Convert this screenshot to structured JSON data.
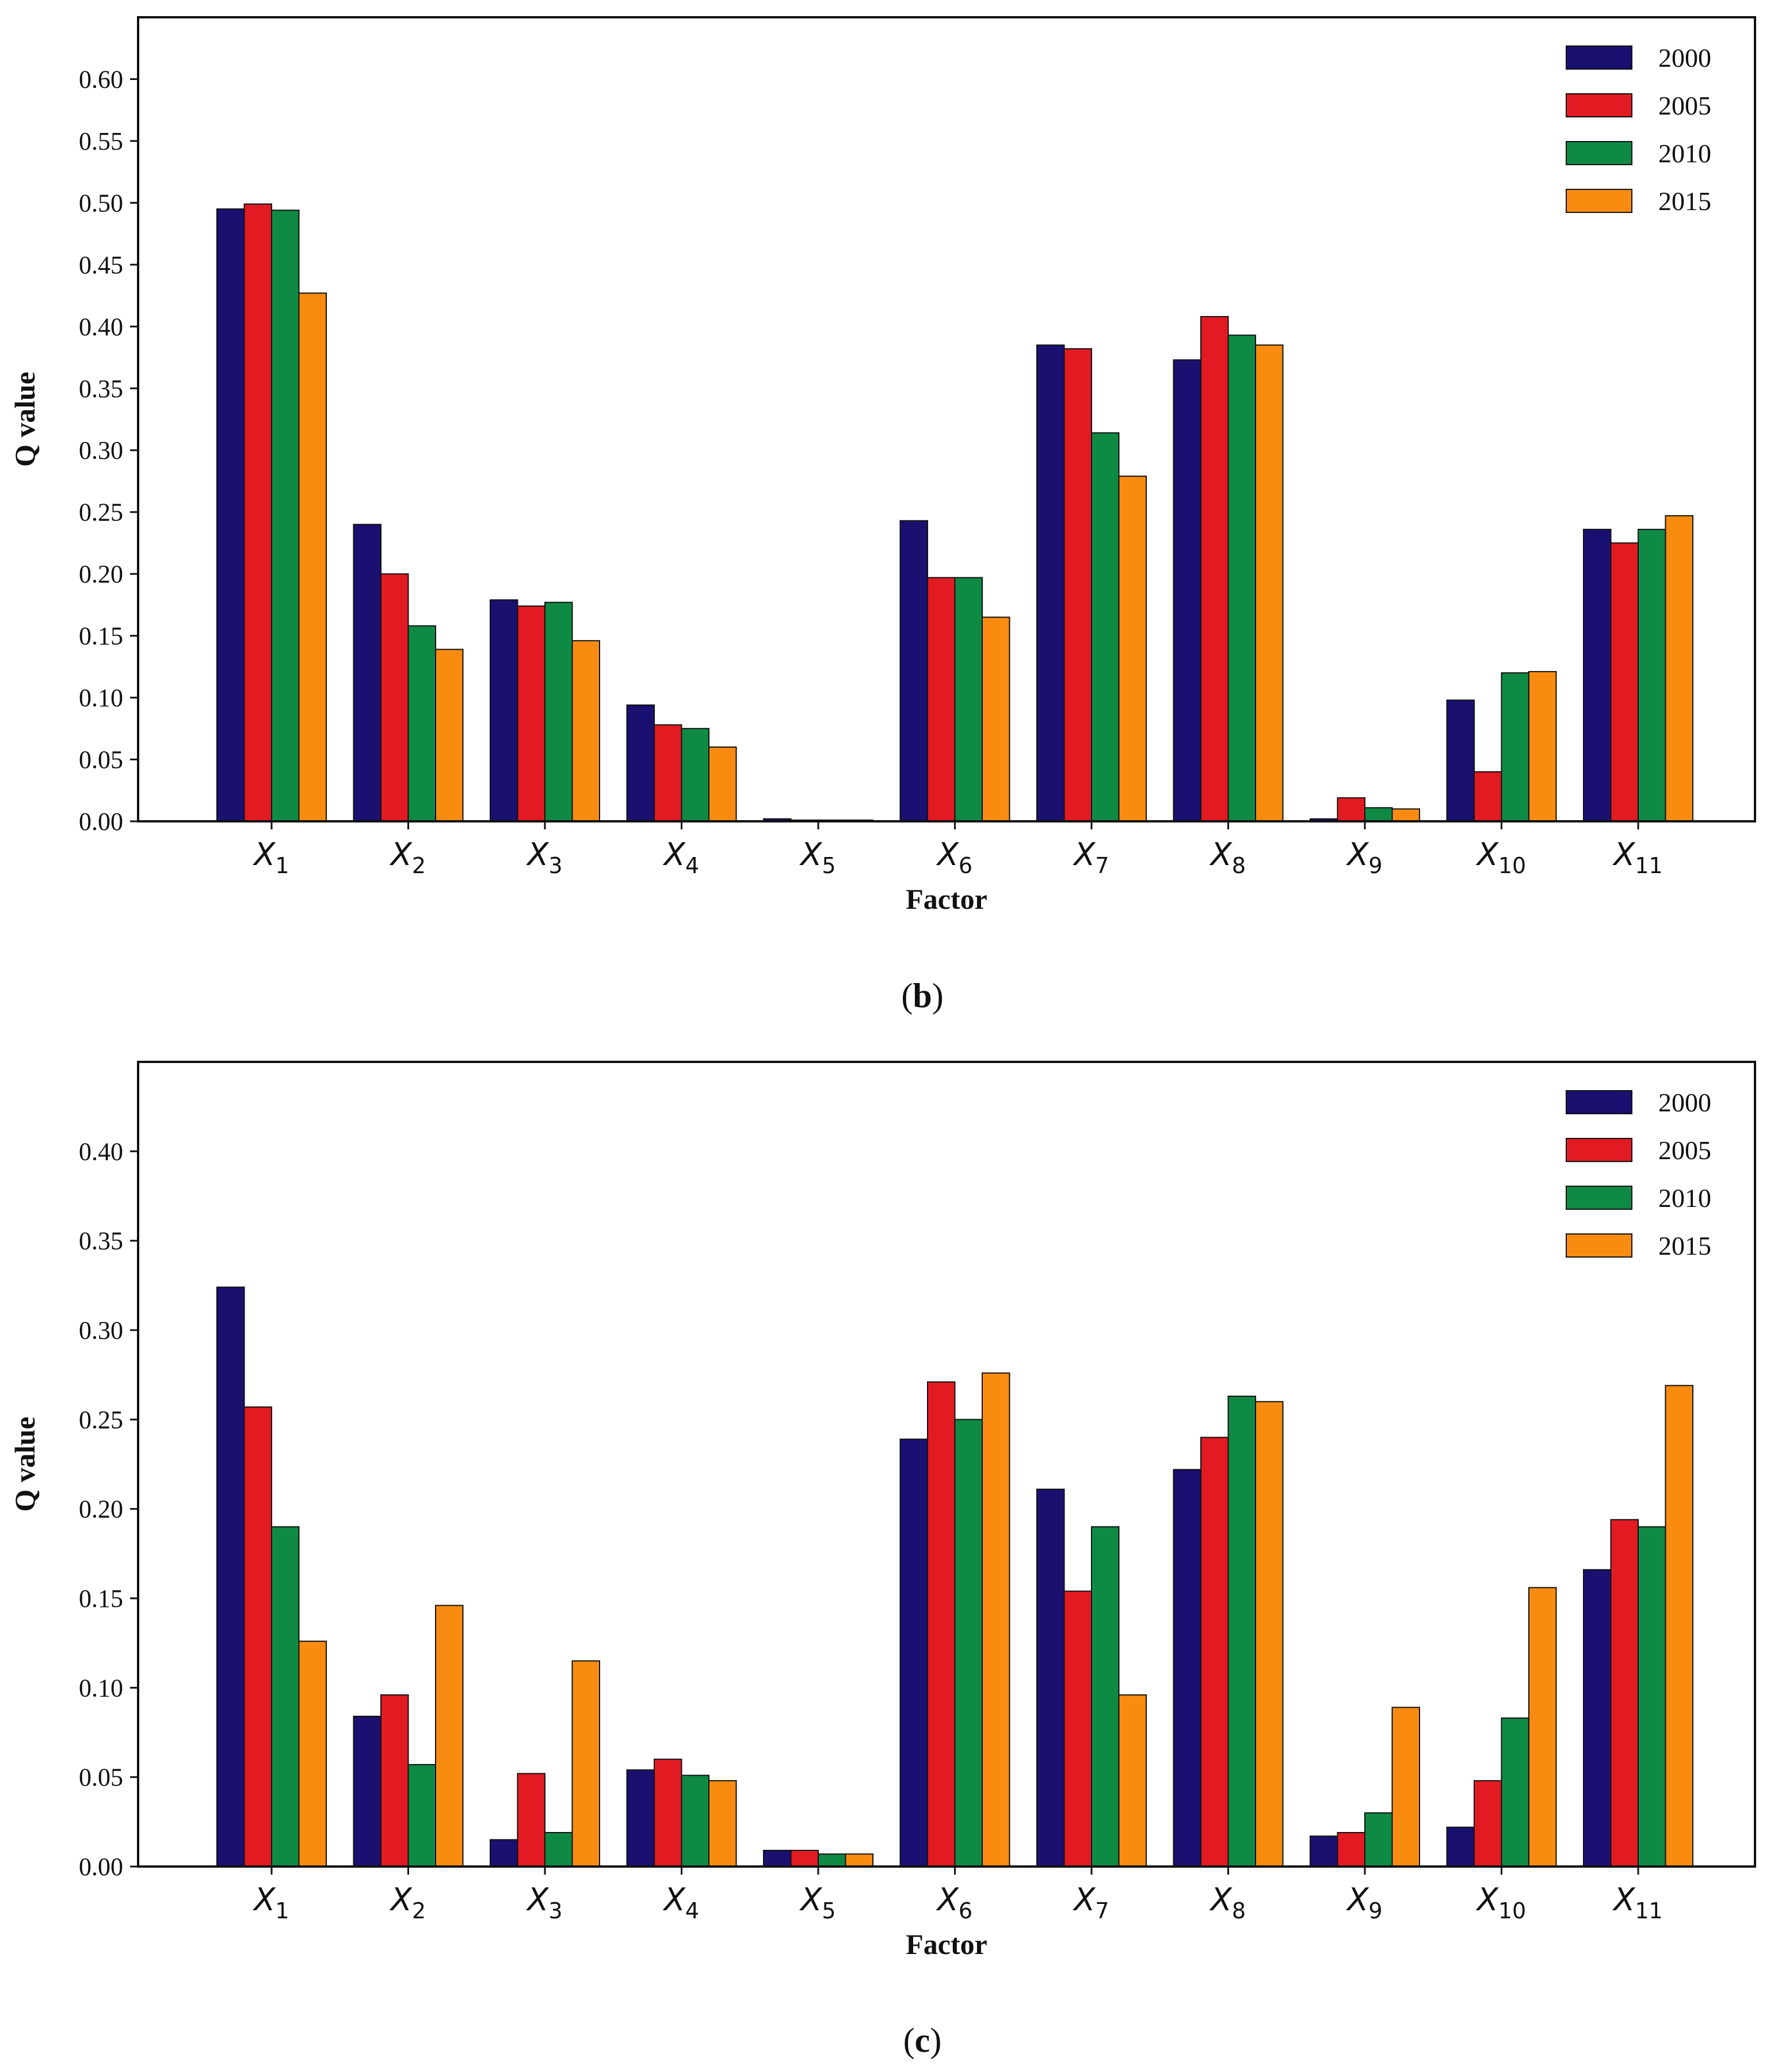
{
  "chart_data": [
    {
      "type": "bar",
      "panel_label": "b",
      "xlabel": "Factor",
      "ylabel": "Q value",
      "ylim": [
        0,
        0.65
      ],
      "yticks": [
        "0.00",
        "0.05",
        "0.10",
        "0.15",
        "0.20",
        "0.25",
        "0.30",
        "0.35",
        "0.40",
        "0.45",
        "0.50",
        "0.55",
        "0.60"
      ],
      "categories": [
        {
          "base": "X",
          "sub": "1"
        },
        {
          "base": "X",
          "sub": "2"
        },
        {
          "base": "X",
          "sub": "3"
        },
        {
          "base": "X",
          "sub": "4"
        },
        {
          "base": "X",
          "sub": "5"
        },
        {
          "base": "X",
          "sub": "6"
        },
        {
          "base": "X",
          "sub": "7"
        },
        {
          "base": "X",
          "sub": "8"
        },
        {
          "base": "X",
          "sub": "9"
        },
        {
          "base": "X",
          "sub": "10"
        },
        {
          "base": "X",
          "sub": "11"
        }
      ],
      "series": [
        {
          "name": "2000",
          "values": [
            0.495,
            0.24,
            0.179,
            0.094,
            0.002,
            0.243,
            0.385,
            0.373,
            0.002,
            0.098,
            0.236
          ]
        },
        {
          "name": "2005",
          "values": [
            0.499,
            0.2,
            0.174,
            0.078,
            0.001,
            0.197,
            0.382,
            0.408,
            0.019,
            0.04,
            0.225
          ]
        },
        {
          "name": "2010",
          "values": [
            0.494,
            0.158,
            0.177,
            0.075,
            0.001,
            0.197,
            0.314,
            0.393,
            0.011,
            0.12,
            0.236
          ]
        },
        {
          "name": "2015",
          "values": [
            0.427,
            0.139,
            0.146,
            0.06,
            0.001,
            0.165,
            0.279,
            0.385,
            0.01,
            0.121,
            0.247
          ]
        }
      ],
      "legend_position": "top-right"
    },
    {
      "type": "bar",
      "panel_label": "c",
      "xlabel": "Factor",
      "ylabel": "Q value",
      "ylim": [
        0,
        0.45
      ],
      "yticks": [
        "0.00",
        "0.05",
        "0.10",
        "0.15",
        "0.20",
        "0.25",
        "0.30",
        "0.35",
        "0.40"
      ],
      "categories": [
        {
          "base": "X",
          "sub": "1"
        },
        {
          "base": "X",
          "sub": "2"
        },
        {
          "base": "X",
          "sub": "3"
        },
        {
          "base": "X",
          "sub": "4"
        },
        {
          "base": "X",
          "sub": "5"
        },
        {
          "base": "X",
          "sub": "6"
        },
        {
          "base": "X",
          "sub": "7"
        },
        {
          "base": "X",
          "sub": "8"
        },
        {
          "base": "X",
          "sub": "9"
        },
        {
          "base": "X",
          "sub": "10"
        },
        {
          "base": "X",
          "sub": "11"
        }
      ],
      "series": [
        {
          "name": "2000",
          "values": [
            0.324,
            0.084,
            0.015,
            0.054,
            0.009,
            0.239,
            0.211,
            0.222,
            0.017,
            0.022,
            0.166
          ]
        },
        {
          "name": "2005",
          "values": [
            0.257,
            0.096,
            0.052,
            0.06,
            0.009,
            0.271,
            0.154,
            0.24,
            0.019,
            0.048,
            0.194
          ]
        },
        {
          "name": "2010",
          "values": [
            0.19,
            0.057,
            0.019,
            0.051,
            0.007,
            0.25,
            0.19,
            0.263,
            0.03,
            0.083,
            0.19
          ]
        },
        {
          "name": "2015",
          "values": [
            0.126,
            0.146,
            0.115,
            0.048,
            0.007,
            0.276,
            0.096,
            0.26,
            0.089,
            0.156,
            0.269
          ]
        }
      ],
      "legend_position": "top-right"
    }
  ],
  "series_colors": [
    "#1a1070",
    "#e21b23",
    "#0f8a45",
    "#f98c10"
  ]
}
